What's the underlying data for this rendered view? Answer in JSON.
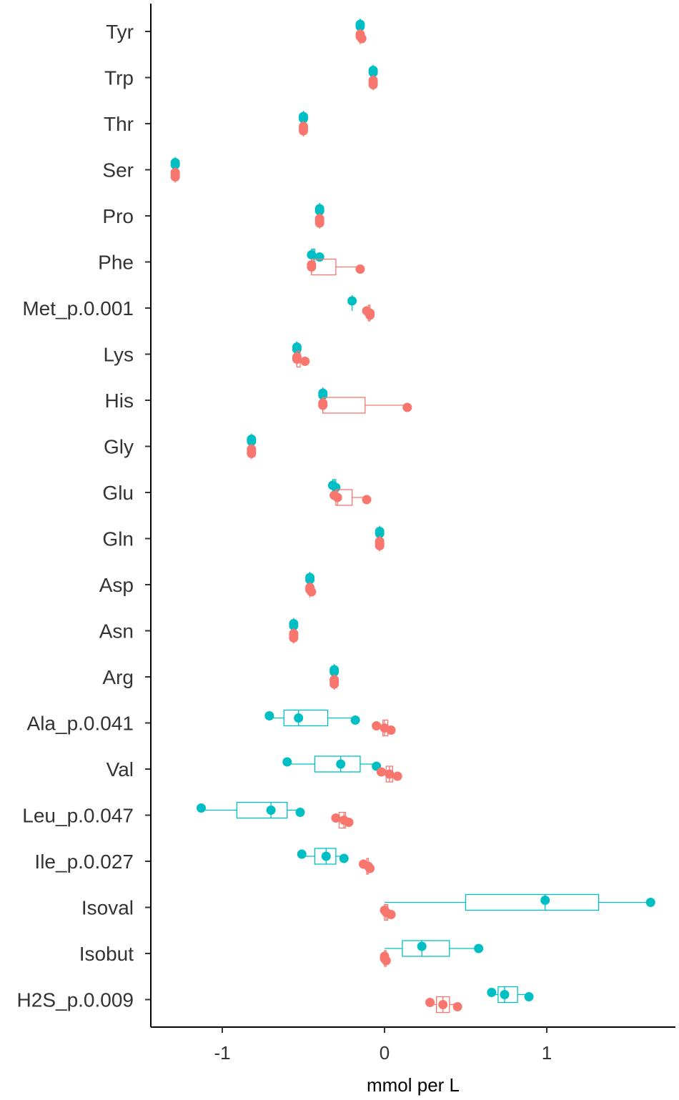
{
  "chart_data": {
    "type": "boxplot",
    "xlabel": "mmol per L",
    "ylabel": "",
    "xlim": [
      -1.4,
      1.8
    ],
    "xticks": [
      -1,
      0,
      1
    ],
    "xtick_labels": [
      "-1",
      "0",
      "1"
    ],
    "grid": false,
    "legend": "none",
    "categories": [
      "Tyr",
      "Trp",
      "Thr",
      "Ser",
      "Pro",
      "Phe",
      "Met_p.0.001",
      "Lys",
      "His",
      "Gly",
      "Glu",
      "Gln",
      "Asp",
      "Asn",
      "Arg",
      "Ala_p.0.041",
      "Val",
      "Leu_p.0.047",
      "Ile_p.0.027",
      "Isoval",
      "Isobut",
      "H2S_p.0.009"
    ],
    "series": [
      {
        "color": "#00BFC4",
        "groups": [
          {
            "box": [
              -0.15,
              -0.15,
              -0.15,
              -0.15,
              -0.15
            ],
            "points": [
              -0.15,
              -0.15
            ]
          },
          {
            "box": [
              -0.07,
              -0.07,
              -0.07,
              -0.07,
              -0.07
            ],
            "points": [
              -0.07,
              -0.07
            ]
          },
          {
            "box": [
              -0.5,
              -0.5,
              -0.5,
              -0.5,
              -0.5
            ],
            "points": [
              -0.5,
              -0.5
            ]
          },
          {
            "box": [
              -1.29,
              -1.29,
              -1.29,
              -1.29,
              -1.29
            ],
            "points": [
              -1.29,
              -1.29
            ]
          },
          {
            "box": [
              -0.4,
              -0.4,
              -0.4,
              -0.4,
              -0.4
            ],
            "points": [
              -0.4,
              -0.4
            ]
          },
          {
            "box": [
              -0.45,
              -0.45,
              -0.44,
              -0.43,
              -0.4
            ],
            "points": [
              -0.45,
              -0.4
            ]
          },
          {
            "box": [
              -0.2,
              -0.2,
              -0.2,
              -0.2,
              -0.2
            ],
            "points": [
              -0.2
            ]
          },
          {
            "box": [
              -0.54,
              -0.54,
              -0.54,
              -0.54,
              -0.54
            ],
            "points": [
              -0.54,
              -0.54
            ]
          },
          {
            "box": [
              -0.38,
              -0.38,
              -0.38,
              -0.38,
              -0.38
            ],
            "points": [
              -0.38,
              -0.38
            ]
          },
          {
            "box": [
              -0.82,
              -0.82,
              -0.82,
              -0.82,
              -0.82
            ],
            "points": [
              -0.82,
              -0.82
            ]
          },
          {
            "box": [
              -0.32,
              -0.32,
              -0.31,
              -0.3,
              -0.3
            ],
            "points": [
              -0.32,
              -0.3
            ]
          },
          {
            "box": [
              -0.03,
              -0.03,
              -0.03,
              -0.03,
              -0.03
            ],
            "points": [
              -0.03,
              -0.03
            ]
          },
          {
            "box": [
              -0.46,
              -0.46,
              -0.46,
              -0.46,
              -0.46
            ],
            "points": [
              -0.46,
              -0.46
            ]
          },
          {
            "box": [
              -0.56,
              -0.56,
              -0.56,
              -0.56,
              -0.56
            ],
            "points": [
              -0.56,
              -0.56
            ]
          },
          {
            "box": [
              -0.31,
              -0.31,
              -0.31,
              -0.31,
              -0.31
            ],
            "points": [
              -0.31,
              -0.31
            ]
          },
          {
            "box": [
              -0.71,
              -0.62,
              -0.53,
              -0.35,
              -0.18
            ],
            "points": [
              -0.71,
              -0.53,
              -0.18
            ]
          },
          {
            "box": [
              -0.6,
              -0.43,
              -0.27,
              -0.15,
              -0.05
            ],
            "points": [
              -0.6,
              -0.27,
              -0.05
            ]
          },
          {
            "box": [
              -1.13,
              -0.91,
              -0.7,
              -0.6,
              -0.52
            ],
            "points": [
              -1.13,
              -0.7,
              -0.52
            ]
          },
          {
            "box": [
              -0.51,
              -0.43,
              -0.36,
              -0.3,
              -0.25
            ],
            "points": [
              -0.51,
              -0.36,
              -0.25
            ]
          },
          {
            "box": [
              0.0,
              0.5,
              0.99,
              1.32,
              1.64
            ],
            "points": [
              0.99,
              1.64
            ]
          },
          {
            "box": [
              0.0,
              0.11,
              0.23,
              0.4,
              0.58
            ],
            "points": [
              0.23,
              0.58
            ]
          },
          {
            "box": [
              0.66,
              0.7,
              0.74,
              0.82,
              0.89
            ],
            "points": [
              0.66,
              0.74,
              0.89
            ]
          }
        ]
      },
      {
        "color": "#F8766D",
        "groups": [
          {
            "box": [
              -0.15,
              -0.15,
              -0.15,
              -0.15,
              -0.14
            ],
            "points": [
              -0.15,
              -0.15,
              -0.14
            ]
          },
          {
            "box": [
              -0.07,
              -0.07,
              -0.07,
              -0.07,
              -0.07
            ],
            "points": [
              -0.07,
              -0.07,
              -0.07
            ]
          },
          {
            "box": [
              -0.5,
              -0.5,
              -0.5,
              -0.5,
              -0.5
            ],
            "points": [
              -0.5,
              -0.5,
              -0.5
            ]
          },
          {
            "box": [
              -1.29,
              -1.29,
              -1.29,
              -1.29,
              -1.29
            ],
            "points": [
              -1.29,
              -1.29,
              -1.29
            ]
          },
          {
            "box": [
              -0.4,
              -0.4,
              -0.4,
              -0.4,
              -0.4
            ],
            "points": [
              -0.4,
              -0.4,
              -0.4
            ]
          },
          {
            "box": [
              -0.45,
              -0.45,
              -0.45,
              -0.3,
              -0.15
            ],
            "points": [
              -0.45,
              -0.45,
              -0.15
            ]
          },
          {
            "box": [
              -0.11,
              -0.1,
              -0.09,
              -0.09,
              -0.09
            ],
            "points": [
              -0.11,
              -0.09,
              -0.09
            ]
          },
          {
            "box": [
              -0.54,
              -0.54,
              -0.54,
              -0.52,
              -0.49
            ],
            "points": [
              -0.54,
              -0.54,
              -0.49
            ]
          },
          {
            "box": [
              -0.38,
              -0.38,
              -0.38,
              -0.12,
              0.14
            ],
            "points": [
              -0.38,
              -0.38,
              0.14
            ]
          },
          {
            "box": [
              -0.82,
              -0.82,
              -0.82,
              -0.82,
              -0.82
            ],
            "points": [
              -0.82,
              -0.82,
              -0.82
            ]
          },
          {
            "box": [
              -0.31,
              -0.3,
              -0.29,
              -0.2,
              -0.11
            ],
            "points": [
              -0.31,
              -0.29,
              -0.11
            ]
          },
          {
            "box": [
              -0.03,
              -0.03,
              -0.03,
              -0.03,
              -0.03
            ],
            "points": [
              -0.03,
              -0.03,
              -0.03
            ]
          },
          {
            "box": [
              -0.46,
              -0.46,
              -0.46,
              -0.46,
              -0.45
            ],
            "points": [
              -0.46,
              -0.46,
              -0.45
            ]
          },
          {
            "box": [
              -0.56,
              -0.56,
              -0.56,
              -0.56,
              -0.56
            ],
            "points": [
              -0.56,
              -0.56,
              -0.56
            ]
          },
          {
            "box": [
              -0.31,
              -0.31,
              -0.31,
              -0.31,
              -0.31
            ],
            "points": [
              -0.31,
              -0.31,
              -0.31
            ]
          },
          {
            "box": [
              -0.05,
              -0.01,
              0.0,
              0.02,
              0.04
            ],
            "points": [
              -0.05,
              0.0,
              0.04
            ]
          },
          {
            "box": [
              -0.02,
              0.01,
              0.03,
              0.05,
              0.08
            ],
            "points": [
              -0.02,
              0.03,
              0.08
            ]
          },
          {
            "box": [
              -0.3,
              -0.28,
              -0.25,
              -0.24,
              -0.22
            ],
            "points": [
              -0.3,
              -0.25,
              -0.22
            ]
          },
          {
            "box": [
              -0.13,
              -0.11,
              -0.1,
              -0.1,
              -0.09
            ],
            "points": [
              -0.13,
              -0.1,
              -0.09
            ]
          },
          {
            "box": [
              0.0,
              0.0,
              0.01,
              0.02,
              0.04
            ],
            "points": [
              0.0,
              0.01,
              0.04
            ]
          },
          {
            "box": [
              0.0,
              0.0,
              0.0,
              0.01,
              0.01
            ],
            "points": [
              0.0,
              0.0,
              0.01
            ]
          },
          {
            "box": [
              0.28,
              0.32,
              0.36,
              0.4,
              0.45
            ],
            "points": [
              0.28,
              0.36,
              0.45
            ]
          }
        ]
      }
    ]
  }
}
